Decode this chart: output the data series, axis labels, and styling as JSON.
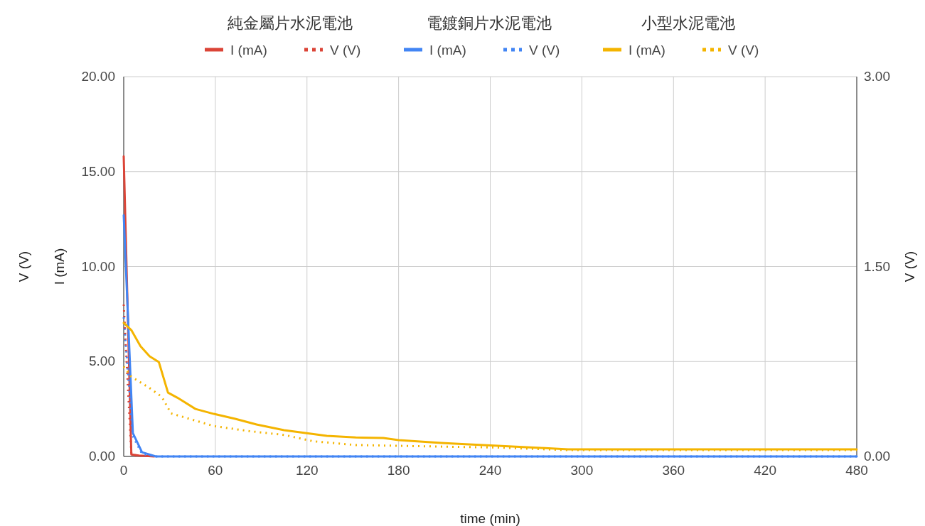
{
  "chart_data": {
    "type": "line",
    "xlabel": "time (min)",
    "ylabel": "I (mA)",
    "y2label": "V (V)",
    "xlim": [
      0,
      480
    ],
    "xticks": [
      0,
      60,
      120,
      180,
      240,
      300,
      360,
      420,
      480
    ],
    "ylim": [
      0,
      20
    ],
    "yticks": [
      {
        "value": 0,
        "label": "0.00"
      },
      {
        "value": 5,
        "label": "5.00"
      },
      {
        "value": 10,
        "label": "10.00"
      },
      {
        "value": 15,
        "label": "15.00"
      },
      {
        "value": 20,
        "label": "20.00"
      }
    ],
    "y2lim": [
      0,
      3
    ],
    "y2ticks": [
      {
        "value": 0,
        "label": "0.00"
      },
      {
        "value": 1.5,
        "label": "1.50"
      },
      {
        "value": 3,
        "label": "3.00"
      }
    ],
    "grid": true,
    "legend": "top",
    "annotations": [
      "純金屬片水泥電池",
      "電鍍銅片水泥電池",
      "小型水泥電池",
      "V (V)"
    ],
    "series": [
      {
        "name": "I (mA)",
        "color": "#db4437",
        "line_style": "solid",
        "x": [
          0,
          5,
          10,
          20
        ],
        "values": [
          15.8,
          0.1,
          0.05,
          0
        ]
      },
      {
        "name": "V (V)",
        "color": "#db4437",
        "line_style": "dotted",
        "axis": "y2",
        "x": [
          0,
          5,
          10
        ],
        "values": [
          1.2,
          0.02,
          0
        ]
      },
      {
        "name": "I (mA)",
        "color": "#4285f4",
        "line_style": "solid",
        "x": [
          0,
          6,
          12,
          21,
          480
        ],
        "values": [
          12.7,
          1.23,
          0.22,
          0,
          0
        ]
      },
      {
        "name": "V (V)",
        "color": "#4285f4",
        "line_style": "dotted",
        "axis": "y2",
        "x": [
          0,
          6,
          12,
          21,
          480
        ],
        "values": [
          1.1,
          0.16,
          0.02,
          0,
          0
        ]
      },
      {
        "name": "I (mA)",
        "color": "#f4b400",
        "line_style": "solid",
        "x": [
          0,
          5,
          11,
          17,
          23,
          29,
          35,
          47,
          59,
          73,
          87,
          105,
          119,
          133,
          152,
          170,
          180,
          208,
          226,
          245,
          273,
          291,
          338,
          480
        ],
        "values": [
          7.03,
          6.65,
          5.8,
          5.27,
          4.97,
          3.36,
          3.1,
          2.5,
          2.24,
          1.98,
          1.68,
          1.38,
          1.23,
          1.08,
          1.0,
          0.97,
          0.86,
          0.71,
          0.64,
          0.56,
          0.45,
          0.37,
          0.37,
          0.37
        ]
      },
      {
        "name": "V (V)",
        "color": "#f4b400",
        "line_style": "dotted",
        "axis": "y2",
        "x": [
          0,
          5,
          17,
          25,
          31,
          45,
          59,
          82,
          105,
          124,
          152,
          198,
          245,
          291,
          480
        ],
        "values": [
          0.71,
          0.63,
          0.54,
          0.47,
          0.34,
          0.29,
          0.24,
          0.2,
          0.17,
          0.12,
          0.09,
          0.08,
          0.07,
          0.05,
          0.05
        ]
      }
    ]
  }
}
